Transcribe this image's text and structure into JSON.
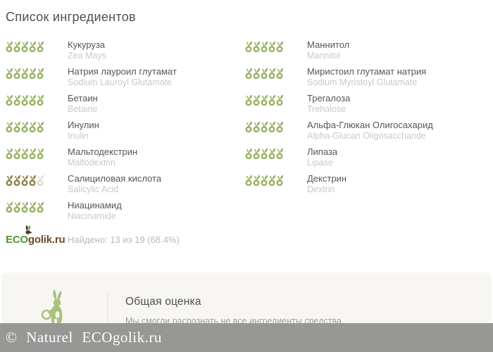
{
  "page": {
    "title": "Список ингредиентов"
  },
  "colors": {
    "green": "#96b161",
    "olive": "#8c824e",
    "empty": "#deddd2",
    "brand_green": "#55922f",
    "brand_brown": "#6a4a2b",
    "band_bg": "#979795",
    "band_text": "#ffffff",
    "summary_bg": "#f7f6f3",
    "rabbit": "#a9c17d"
  },
  "icons": {
    "rating": "apple-with-leaf-icon",
    "logo": "rabbit-icon",
    "summary": "rabbit-with-magnifier-icon"
  },
  "columns": [
    {
      "items": [
        {
          "name": "Кукуруза",
          "latin": "Zea Mays",
          "rating": 5,
          "max": 5,
          "tone": "green"
        },
        {
          "name": "Натрия лауроил глутамат",
          "latin": "Sodium Lauroyl Glutamate",
          "rating": 5,
          "max": 5,
          "tone": "green"
        },
        {
          "name": "Бетаин",
          "latin": "Betaine",
          "rating": 5,
          "max": 5,
          "tone": "green"
        },
        {
          "name": "Инулин",
          "latin": "Inulin",
          "rating": 5,
          "max": 5,
          "tone": "green"
        },
        {
          "name": "Мальтодекстрин",
          "latin": "Maltodextrin",
          "rating": 5,
          "max": 5,
          "tone": "green"
        },
        {
          "name": "Салициловая кислота",
          "latin": "Salicylic Acid",
          "rating": 4,
          "max": 5,
          "tone": "olive"
        },
        {
          "name": "Ниацинамид",
          "latin": "Niacinamide",
          "rating": 5,
          "max": 5,
          "tone": "green"
        }
      ]
    },
    {
      "items": [
        {
          "name": "Маннитол",
          "latin": "Mannitol",
          "rating": 5,
          "max": 5,
          "tone": "green"
        },
        {
          "name": "Миристоил глутамат натрия",
          "latin": "Sodium Myristoyl Glutamate",
          "rating": 5,
          "max": 5,
          "tone": "green"
        },
        {
          "name": "Трегалоза",
          "latin": "Trehalose",
          "rating": 5,
          "max": 5,
          "tone": "green"
        },
        {
          "name": "Альфа-Глюкан Олигосахарид",
          "latin": "Alpha-Glucan Oligosaccharide",
          "rating": 5,
          "max": 5,
          "tone": "green"
        },
        {
          "name": "Липаза",
          "latin": "Lipase",
          "rating": 5,
          "max": 5,
          "tone": "green"
        },
        {
          "name": "Декстрин",
          "latin": "Dextrin",
          "rating": 5,
          "max": 5,
          "tone": "green"
        }
      ]
    }
  ],
  "logo": {
    "eco": "ECO",
    "golik": "golik.ru"
  },
  "found": {
    "text": "Найдено: 13 из 19 (68.4%)"
  },
  "summary": {
    "title": "Общая оценка",
    "description": "Мы смогли распознать не все ингредиенты средства."
  },
  "footer": {
    "copyright": "© Naturel  ECOgolik.ru"
  }
}
